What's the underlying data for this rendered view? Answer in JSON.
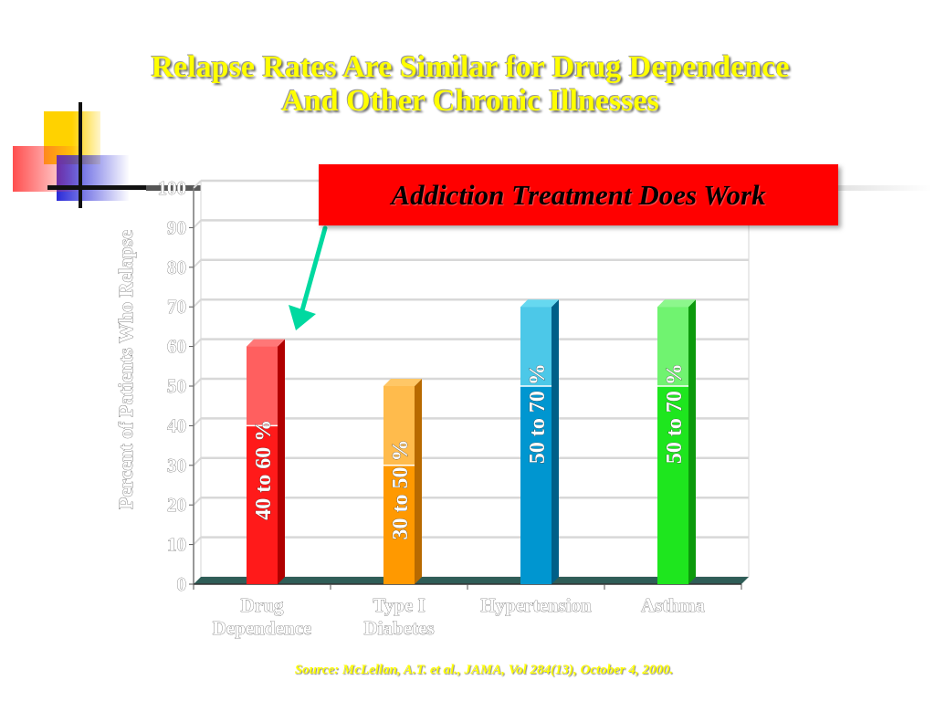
{
  "slide": {
    "title_line1": "Relapse Rates Are Similar for Drug Dependence",
    "title_line2": "And Other Chronic Illnesses",
    "callout": "Addiction Treatment Does Work",
    "source": "Source: McLellan, A.T. et al., JAMA, Vol 284(13), October 4, 2000.",
    "accent_colors": {
      "title": "#ffff00",
      "callout": "#ff0000",
      "arrow": "#00d9a0"
    }
  },
  "chart_data": {
    "type": "bar",
    "ylabel": "Percent of Patients Who Relapse",
    "xlabel": "",
    "ylim": [
      0,
      100
    ],
    "yticks": [
      0,
      10,
      20,
      30,
      40,
      50,
      60,
      70,
      80,
      90,
      100
    ],
    "grid": true,
    "categories": [
      {
        "lines": [
          "Drug",
          "Dependence"
        ],
        "low": 40,
        "high": 60,
        "label": "40 to 60 %",
        "color": "#ff1a1a",
        "dark": "#b00000",
        "light": "#ff7777"
      },
      {
        "lines": [
          "Type I",
          "Diabetes"
        ],
        "low": 30,
        "high": 50,
        "label": "30 to 50 %",
        "color": "#ff9900",
        "dark": "#b86a00",
        "light": "#ffc766"
      },
      {
        "lines": [
          "Hypertension"
        ],
        "low": 50,
        "high": 70,
        "label": "50 to 70 %",
        "color": "#0096d0",
        "dark": "#005f88",
        "light": "#66d8f0"
      },
      {
        "lines": [
          "Asthma"
        ],
        "low": 50,
        "high": 70,
        "label": "50 to 70 %",
        "color": "#1ee61e",
        "dark": "#0c9a0c",
        "light": "#8cf78c"
      }
    ]
  }
}
